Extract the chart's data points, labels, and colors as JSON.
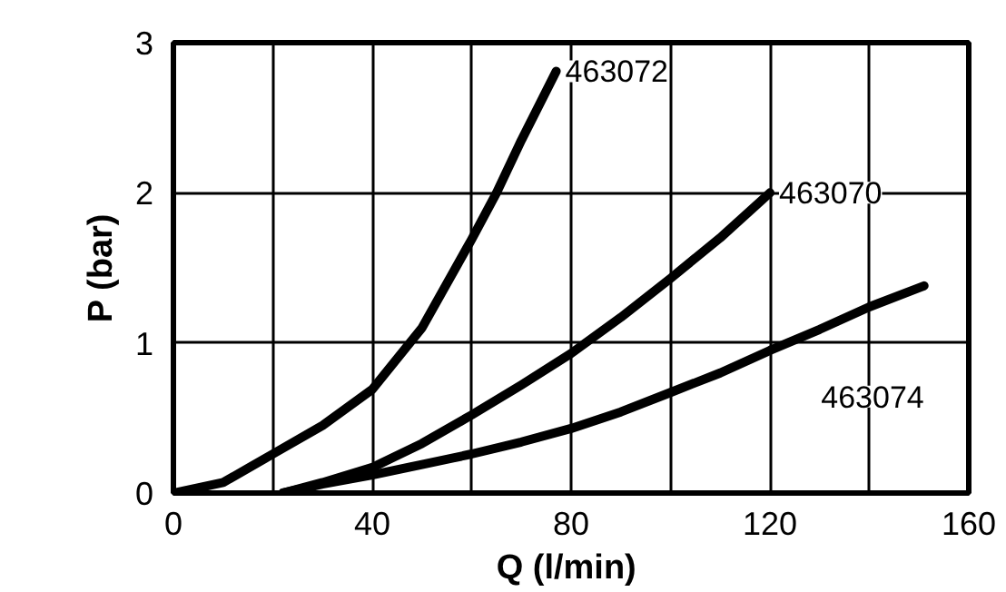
{
  "chart_data": {
    "type": "line",
    "xlabel": "Q  (l/min)",
    "ylabel": "P (bar)",
    "xlim": [
      0,
      160
    ],
    "ylim": [
      0,
      3
    ],
    "xticks": [
      0,
      40,
      80,
      120,
      160
    ],
    "yticks": [
      0,
      1,
      2,
      3
    ],
    "grid": true,
    "marker": "none",
    "line_style": "solid",
    "series": [
      {
        "name": "463072",
        "color": "#000000",
        "x": [
          0,
          10,
          20,
          30,
          40,
          50,
          60,
          65,
          70,
          77
        ],
        "values": [
          0,
          0.07,
          0.26,
          0.45,
          0.69,
          1.1,
          1.69,
          2.0,
          2.35,
          2.81
        ]
      },
      {
        "name": "463070",
        "color": "#000000",
        "x": [
          22,
          30,
          40,
          50,
          60,
          70,
          80,
          90,
          100,
          110,
          120
        ],
        "values": [
          0,
          0.07,
          0.17,
          0.33,
          0.52,
          0.72,
          0.93,
          1.17,
          1.43,
          1.7,
          2.0
        ]
      },
      {
        "name": "463074",
        "color": "#000000",
        "x": [
          22,
          30,
          40,
          50,
          60,
          70,
          80,
          90,
          100,
          110,
          120,
          130,
          140,
          151
        ],
        "values": [
          0,
          0.06,
          0.12,
          0.19,
          0.26,
          0.34,
          0.43,
          0.54,
          0.67,
          0.8,
          0.95,
          1.09,
          1.24,
          1.38
        ]
      }
    ]
  }
}
